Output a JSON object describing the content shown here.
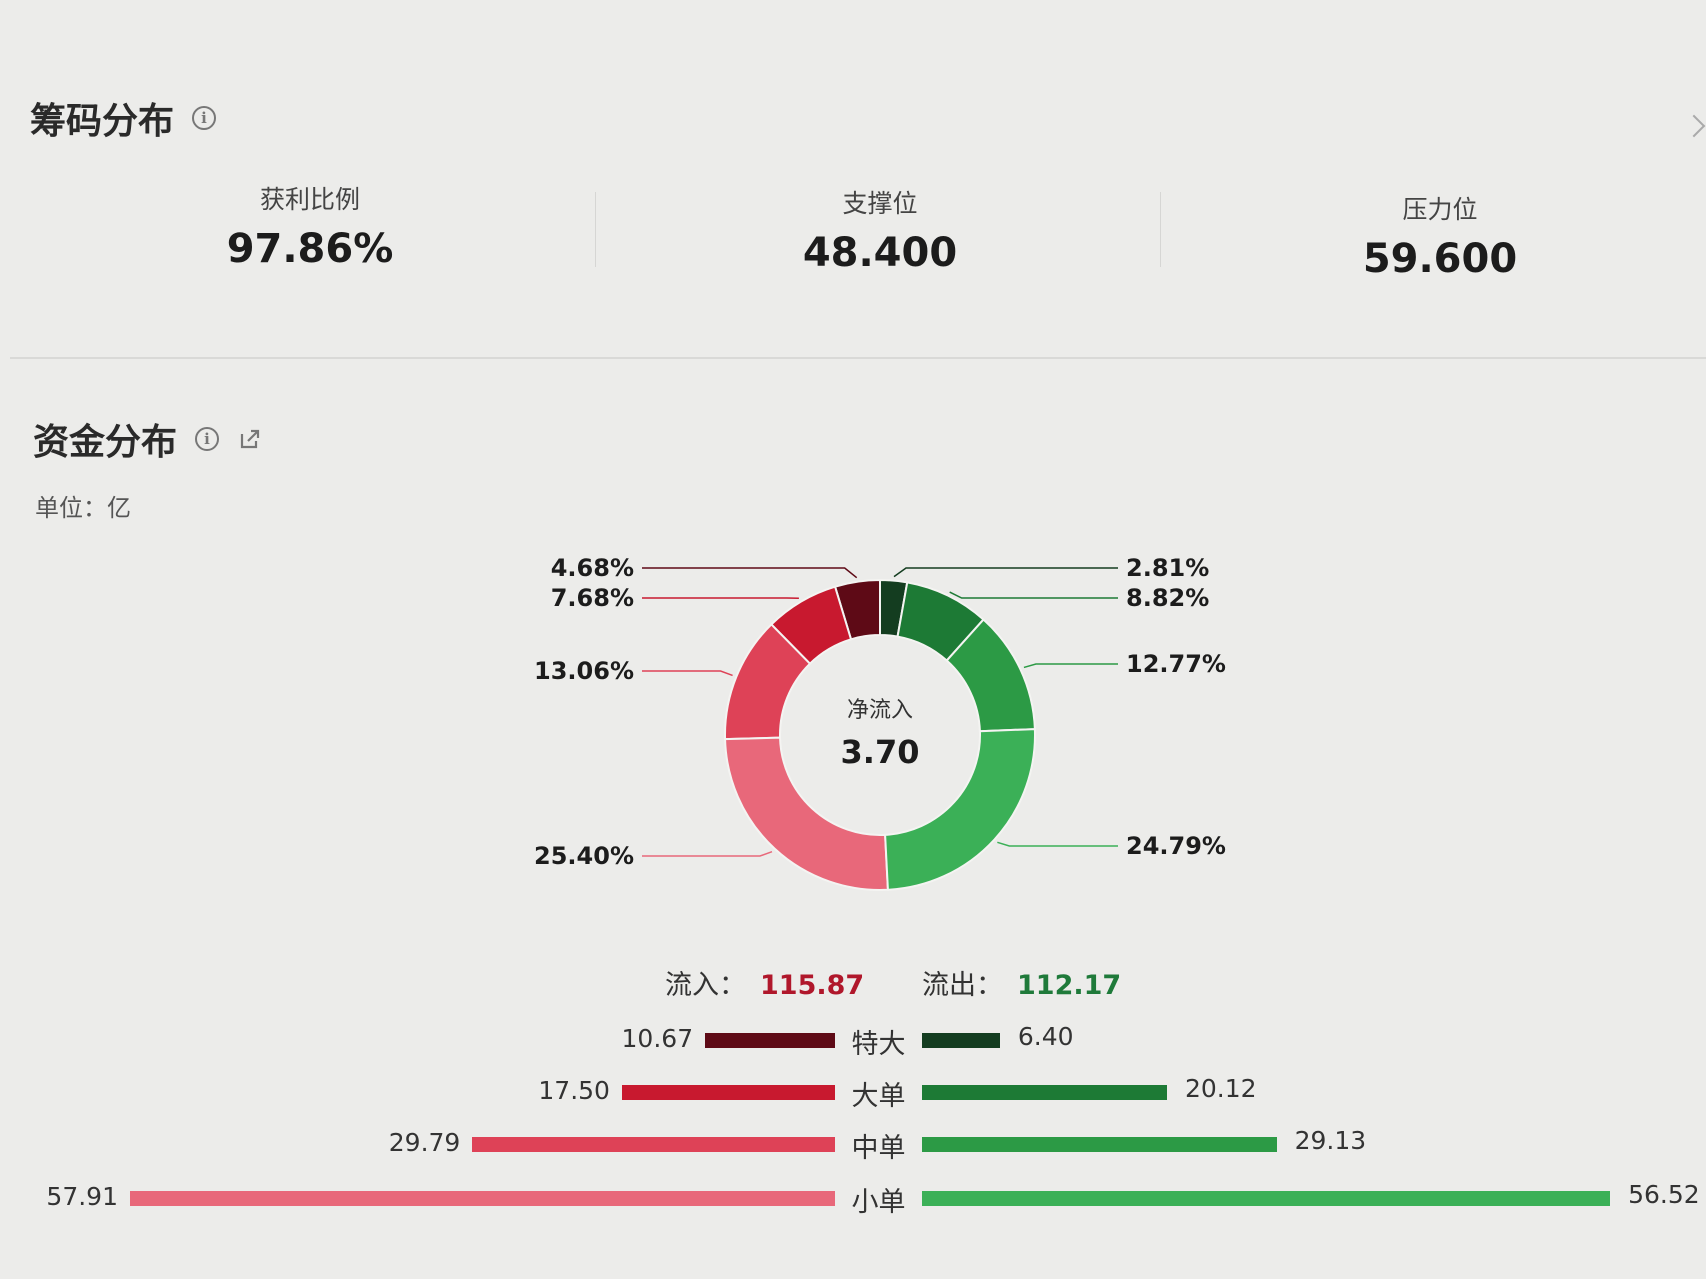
{
  "chip_section": {
    "title": "筹码分布",
    "stats": [
      {
        "label": "获利比例",
        "value": "97.86%"
      },
      {
        "label": "支撑位",
        "value": "48.400"
      },
      {
        "label": "压力位",
        "value": "59.600"
      }
    ]
  },
  "fund_section": {
    "title": "资金分布",
    "unit": "单位：亿",
    "center_label": "净流入",
    "center_value": "3.70",
    "inflow_label": "流入：",
    "inflow_value": "115.87",
    "outflow_label": "流出：",
    "outflow_value": "112.17"
  },
  "colors": {
    "in_xl": "#5e0a16",
    "in_l": "#c8192f",
    "in_m": "#de4257",
    "in_s": "#e8687a",
    "out_xl": "#143d20",
    "out_l": "#1d7a35",
    "out_m": "#2c9a45",
    "out_s": "#3bb057",
    "inflow_text": "#b0172b",
    "outflow_text": "#1f7a3a"
  },
  "chart_data": [
    {
      "type": "pie",
      "subtype": "donut",
      "title": "",
      "slices": [
        {
          "label": "4.68%",
          "value": 4.68,
          "group": "inflow",
          "color": "#5e0a16"
        },
        {
          "label": "7.68%",
          "value": 7.68,
          "group": "inflow",
          "color": "#c8192f"
        },
        {
          "label": "13.06%",
          "value": 13.06,
          "group": "inflow",
          "color": "#de4257"
        },
        {
          "label": "25.40%",
          "value": 25.4,
          "group": "inflow",
          "color": "#e8687a"
        },
        {
          "label": "2.81%",
          "value": 2.81,
          "group": "outflow",
          "color": "#143d20"
        },
        {
          "label": "8.82%",
          "value": 8.82,
          "group": "outflow",
          "color": "#1d7a35"
        },
        {
          "label": "12.77%",
          "value": 12.77,
          "group": "outflow",
          "color": "#2c9a45"
        },
        {
          "label": "24.79%",
          "value": 24.79,
          "group": "outflow",
          "color": "#3bb057"
        }
      ]
    },
    {
      "type": "bar",
      "orientation": "horizontal-diverging",
      "categories": [
        "特大",
        "大单",
        "中单",
        "小单"
      ],
      "series": [
        {
          "name": "流入",
          "values": [
            10.67,
            17.5,
            29.79,
            57.91
          ],
          "labels": [
            "10.67",
            "17.50",
            "29.79",
            "57.91"
          ]
        },
        {
          "name": "流出",
          "values": [
            6.4,
            20.12,
            29.13,
            56.52
          ],
          "labels": [
            "6.40",
            "20.12",
            "29.13",
            "56.52"
          ]
        }
      ]
    }
  ]
}
